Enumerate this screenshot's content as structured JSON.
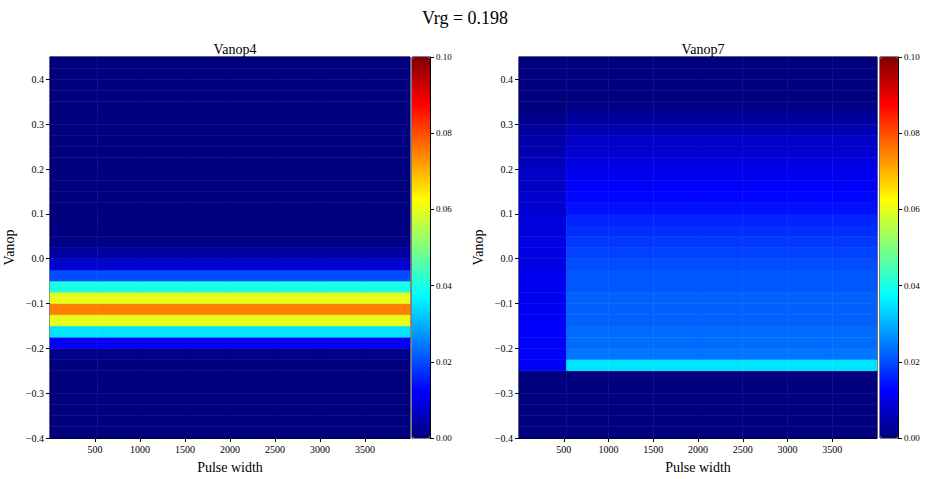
{
  "title": "Vrg = 0.198",
  "chart_data": [
    {
      "type": "heatmap",
      "title": "Vanop4",
      "x_label": "Pulse width",
      "y_label": "Vanop",
      "xlim": [
        0,
        4000
      ],
      "xticks": [
        500,
        1000,
        1500,
        2000,
        2500,
        3000,
        3500
      ],
      "ylim": [
        -0.4,
        0.45
      ],
      "yticks": [
        {
          "value": -0.4,
          "label": "−0.4"
        },
        {
          "value": -0.3,
          "label": "−0.3"
        },
        {
          "value": -0.2,
          "label": "−0.2"
        },
        {
          "value": -0.1,
          "label": "−0.1"
        },
        {
          "value": 0,
          "label": "0.0"
        },
        0.1,
        0.2,
        0.3,
        0.4
      ],
      "x_bins": [
        0,
        530,
        1000,
        1500,
        2000,
        2500,
        3000,
        3500,
        4000
      ],
      "y_bins": [
        -0.4,
        -0.375,
        -0.35,
        -0.325,
        -0.3,
        -0.275,
        -0.25,
        -0.225,
        -0.2,
        -0.175,
        -0.15,
        -0.125,
        -0.1,
        -0.075,
        -0.05,
        -0.025,
        0,
        0.025,
        0.05,
        0.075,
        0.1,
        0.125,
        0.15,
        0.175,
        0.2,
        0.225,
        0.25,
        0.275,
        0.3,
        0.325,
        0.35,
        0.375,
        0.4,
        0.425,
        0.45
      ],
      "cells": [
        [
          0,
          0,
          0,
          0,
          0,
          0,
          0,
          0
        ],
        [
          0,
          0,
          0,
          0,
          0,
          0,
          0,
          0
        ],
        [
          0,
          0,
          0,
          0,
          0,
          0,
          0,
          0
        ],
        [
          0,
          0,
          0,
          0,
          0,
          0,
          0,
          0
        ],
        [
          0,
          0,
          0,
          0,
          0,
          0,
          0,
          0
        ],
        [
          0,
          0,
          0,
          0,
          0,
          0,
          0,
          0
        ],
        [
          0,
          0,
          0,
          0,
          0,
          0,
          0,
          0
        ],
        [
          0.001,
          0.001,
          0.001,
          0.001,
          0.001,
          0.001,
          0.001,
          0.001
        ],
        [
          0.012,
          0.012,
          0.012,
          0.012,
          0.012,
          0.012,
          0.012,
          0.012
        ],
        [
          0.035,
          0.035,
          0.035,
          0.035,
          0.035,
          0.035,
          0.035,
          0.035
        ],
        [
          0.06,
          0.06,
          0.06,
          0.06,
          0.06,
          0.06,
          0.06,
          0.06
        ],
        [
          0.075,
          0.075,
          0.075,
          0.075,
          0.075,
          0.075,
          0.075,
          0.075
        ],
        [
          0.06,
          0.06,
          0.06,
          0.06,
          0.06,
          0.06,
          0.06,
          0.06
        ],
        [
          0.04,
          0.04,
          0.04,
          0.04,
          0.04,
          0.04,
          0.04,
          0.04
        ],
        [
          0.02,
          0.02,
          0.02,
          0.02,
          0.02,
          0.02,
          0.02,
          0.02
        ],
        [
          0.008,
          0.008,
          0.008,
          0.008,
          0.008,
          0.008,
          0.008,
          0.008
        ],
        [
          0.003,
          0.003,
          0.003,
          0.003,
          0.003,
          0.003,
          0.003,
          0.003
        ],
        [
          0.001,
          0.001,
          0.001,
          0.001,
          0.001,
          0.001,
          0.001,
          0.001
        ],
        [
          0,
          0,
          0,
          0,
          0,
          0,
          0,
          0
        ],
        [
          0,
          0,
          0,
          0,
          0,
          0,
          0,
          0
        ],
        [
          0,
          0,
          0,
          0,
          0,
          0,
          0,
          0
        ],
        [
          0,
          0,
          0,
          0,
          0,
          0,
          0,
          0
        ],
        [
          0,
          0,
          0,
          0,
          0,
          0,
          0,
          0
        ],
        [
          0,
          0,
          0,
          0,
          0,
          0,
          0,
          0
        ],
        [
          0,
          0,
          0,
          0,
          0,
          0,
          0,
          0
        ],
        [
          0,
          0,
          0,
          0,
          0,
          0,
          0,
          0
        ],
        [
          0,
          0,
          0,
          0,
          0,
          0,
          0,
          0
        ],
        [
          0,
          0,
          0,
          0,
          0,
          0,
          0,
          0
        ],
        [
          0,
          0,
          0,
          0,
          0,
          0,
          0,
          0
        ],
        [
          0,
          0,
          0,
          0,
          0,
          0,
          0,
          0
        ],
        [
          0,
          0,
          0,
          0,
          0,
          0,
          0,
          0
        ],
        [
          0,
          0,
          0,
          0,
          0,
          0,
          0,
          0
        ],
        [
          0,
          0,
          0,
          0,
          0,
          0,
          0,
          0
        ],
        [
          0,
          0,
          0,
          0,
          0,
          0,
          0,
          0
        ]
      ],
      "colorbar_range": [
        0,
        0.1
      ],
      "colorbar_ticks": [
        {
          "value": 0,
          "label": "0.00"
        },
        {
          "value": 0.02,
          "label": "0.02"
        },
        {
          "value": 0.04,
          "label": "0.04"
        },
        {
          "value": 0.06,
          "label": "0.06"
        },
        {
          "value": 0.08,
          "label": "0.08"
        },
        {
          "value": 0.1,
          "label": "0.10"
        }
      ]
    },
    {
      "type": "heatmap",
      "title": "Vanop7",
      "x_label": "Pulse width",
      "y_label": "Vanop",
      "xlim": [
        0,
        4000
      ],
      "xticks": [
        500,
        1000,
        1500,
        2000,
        2500,
        3000,
        3500
      ],
      "ylim": [
        -0.4,
        0.45
      ],
      "yticks": [
        {
          "value": -0.4,
          "label": "−0.4"
        },
        {
          "value": -0.3,
          "label": "−0.3"
        },
        {
          "value": -0.2,
          "label": "−0.2"
        },
        {
          "value": -0.1,
          "label": "−0.1"
        },
        {
          "value": 0,
          "label": "0.0"
        },
        0.1,
        0.2,
        0.3,
        0.4
      ],
      "x_bins": [
        0,
        530,
        1000,
        1500,
        2000,
        2500,
        3000,
        3500,
        4000
      ],
      "y_bins": [
        -0.4,
        -0.375,
        -0.35,
        -0.325,
        -0.3,
        -0.275,
        -0.25,
        -0.225,
        -0.2,
        -0.175,
        -0.15,
        -0.125,
        -0.1,
        -0.075,
        -0.05,
        -0.025,
        0,
        0.025,
        0.05,
        0.075,
        0.1,
        0.125,
        0.15,
        0.175,
        0.2,
        0.225,
        0.25,
        0.275,
        0.3,
        0.325,
        0.35,
        0.375,
        0.4,
        0.425,
        0.45
      ],
      "cells": [
        [
          0,
          0,
          0,
          0,
          0,
          0,
          0,
          0
        ],
        [
          0,
          0,
          0,
          0,
          0,
          0,
          0,
          0
        ],
        [
          0,
          0,
          0,
          0,
          0,
          0,
          0,
          0
        ],
        [
          0,
          0,
          0,
          0,
          0,
          0,
          0,
          0
        ],
        [
          0,
          0,
          0,
          0,
          0,
          0,
          0,
          0
        ],
        [
          0,
          0,
          0,
          0,
          0,
          0,
          0,
          0
        ],
        [
          0.012,
          0.035,
          0.035,
          0.035,
          0.035,
          0.035,
          0.035,
          0.035
        ],
        [
          0.012,
          0.024,
          0.024,
          0.024,
          0.024,
          0.024,
          0.024,
          0.024
        ],
        [
          0.012,
          0.023,
          0.023,
          0.023,
          0.023,
          0.023,
          0.023,
          0.023
        ],
        [
          0.012,
          0.023,
          0.023,
          0.023,
          0.023,
          0.023,
          0.023,
          0.023
        ],
        [
          0.012,
          0.022,
          0.022,
          0.022,
          0.022,
          0.022,
          0.022,
          0.022
        ],
        [
          0.011,
          0.022,
          0.022,
          0.022,
          0.022,
          0.022,
          0.022,
          0.022
        ],
        [
          0.011,
          0.022,
          0.022,
          0.022,
          0.022,
          0.022,
          0.022,
          0.022
        ],
        [
          0.011,
          0.021,
          0.021,
          0.021,
          0.021,
          0.021,
          0.021,
          0.021
        ],
        [
          0.011,
          0.021,
          0.021,
          0.021,
          0.021,
          0.021,
          0.021,
          0.021
        ],
        [
          0.01,
          0.02,
          0.02,
          0.02,
          0.02,
          0.02,
          0.02,
          0.02
        ],
        [
          0.01,
          0.019,
          0.019,
          0.019,
          0.019,
          0.019,
          0.019,
          0.019
        ],
        [
          0.01,
          0.018,
          0.018,
          0.018,
          0.018,
          0.018,
          0.018,
          0.018
        ],
        [
          0.009,
          0.017,
          0.017,
          0.017,
          0.017,
          0.017,
          0.017,
          0.017
        ],
        [
          0.009,
          0.016,
          0.016,
          0.016,
          0.016,
          0.016,
          0.016,
          0.016
        ],
        [
          0.008,
          0.014,
          0.014,
          0.014,
          0.014,
          0.014,
          0.014,
          0.014
        ],
        [
          0.008,
          0.013,
          0.013,
          0.013,
          0.013,
          0.013,
          0.013,
          0.013
        ],
        [
          0.007,
          0.012,
          0.012,
          0.012,
          0.012,
          0.012,
          0.012,
          0.012
        ],
        [
          0.007,
          0.011,
          0.011,
          0.011,
          0.011,
          0.011,
          0.011,
          0.011
        ],
        [
          0.006,
          0.01,
          0.01,
          0.01,
          0.01,
          0.01,
          0.01,
          0.01
        ],
        [
          0.005,
          0.008,
          0.008,
          0.008,
          0.008,
          0.008,
          0.008,
          0.008
        ],
        [
          0.004,
          0.007,
          0.007,
          0.007,
          0.007,
          0.007,
          0.007,
          0.007
        ],
        [
          0.003,
          0.005,
          0.005,
          0.005,
          0.005,
          0.005,
          0.005,
          0.005
        ],
        [
          0.001,
          0.003,
          0.003,
          0.003,
          0.003,
          0.003,
          0.003,
          0.003
        ],
        [
          0,
          0.001,
          0.001,
          0.001,
          0.001,
          0.001,
          0.001,
          0.001
        ],
        [
          0,
          0,
          0,
          0,
          0,
          0,
          0,
          0
        ],
        [
          0,
          0,
          0,
          0,
          0,
          0,
          0,
          0
        ],
        [
          0,
          0,
          0,
          0,
          0,
          0,
          0,
          0
        ],
        [
          0,
          0,
          0,
          0,
          0,
          0,
          0,
          0
        ]
      ],
      "colorbar_range": [
        0,
        0.1
      ],
      "colorbar_ticks": [
        {
          "value": 0,
          "label": "0.00"
        },
        {
          "value": 0.02,
          "label": "0.02"
        },
        {
          "value": 0.04,
          "label": "0.04"
        },
        {
          "value": 0.06,
          "label": "0.06"
        },
        {
          "value": 0.08,
          "label": "0.08"
        },
        {
          "value": 0.1,
          "label": "0.10"
        }
      ]
    }
  ]
}
